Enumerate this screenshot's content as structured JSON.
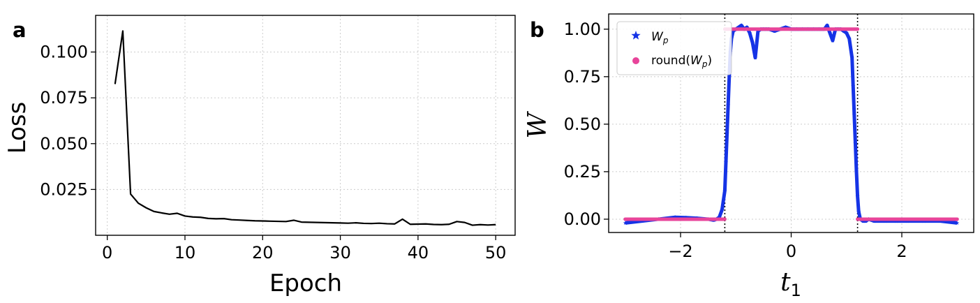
{
  "chart_data": [
    {
      "type": "line",
      "panel_label": "a",
      "xlabel": "Epoch",
      "ylabel": "Loss",
      "xlim": [
        -1.5,
        52.5
      ],
      "ylim": [
        0.0,
        0.12
      ],
      "xticks": [
        0,
        10,
        20,
        30,
        40,
        50
      ],
      "yticks": [
        0.025,
        0.05,
        0.075,
        0.1
      ],
      "ytick_labels": [
        "0.025",
        "0.050",
        "0.075",
        "0.100"
      ],
      "grid": true,
      "colors": {
        "line": "#000000",
        "grid": "#cccccc"
      },
      "series": [
        {
          "x": [
            1,
            2,
            3,
            4,
            5,
            6,
            7,
            8,
            9,
            10,
            11,
            12,
            13,
            14,
            15,
            16,
            17,
            18,
            19,
            20,
            21,
            22,
            23,
            24,
            25,
            26,
            27,
            28,
            29,
            30,
            31,
            32,
            33,
            34,
            35,
            36,
            37,
            38,
            39,
            40,
            41,
            42,
            43,
            44,
            45,
            46,
            47,
            48,
            49,
            50
          ],
          "values": [
            0.0825,
            0.1115,
            0.0225,
            0.0175,
            0.015,
            0.013,
            0.0122,
            0.0115,
            0.012,
            0.0105,
            0.01,
            0.0098,
            0.0092,
            0.009,
            0.0091,
            0.0085,
            0.0083,
            0.0081,
            0.0079,
            0.0078,
            0.0077,
            0.0076,
            0.0075,
            0.0082,
            0.0072,
            0.0071,
            0.007,
            0.0069,
            0.0068,
            0.0067,
            0.0066,
            0.0068,
            0.0065,
            0.0064,
            0.0066,
            0.0063,
            0.0062,
            0.0088,
            0.006,
            0.0061,
            0.0062,
            0.0059,
            0.0058,
            0.006,
            0.0075,
            0.007,
            0.0055,
            0.0058,
            0.0056,
            0.0058
          ]
        }
      ]
    },
    {
      "type": "scatter",
      "panel_label": "b",
      "xlabel": "t",
      "xlabel_sub": "1",
      "ylabel": "W",
      "xlim": [
        -3.3,
        3.3
      ],
      "ylim": [
        -0.07,
        1.08
      ],
      "xticks": [
        -2,
        0,
        2
      ],
      "xtick_labels": [
        "−2",
        "0",
        "2"
      ],
      "yticks": [
        0.0,
        0.25,
        0.5,
        0.75,
        1.0
      ],
      "ytick_labels": [
        "0.00",
        "0.25",
        "0.50",
        "0.75",
        "1.00"
      ],
      "grid": true,
      "vlines": [
        -1.2,
        1.2
      ],
      "legend_position": "top-left",
      "colors": {
        "wp": "#1533e6",
        "round": "#e8449a",
        "vline": "#000000",
        "grid": "#cccccc"
      },
      "series": [
        {
          "name": "W_p",
          "legend_main": "W",
          "legend_sub": "p",
          "marker": "star",
          "x": [
            -3.0,
            -2.7,
            -2.4,
            -2.1,
            -1.9,
            -1.7,
            -1.5,
            -1.4,
            -1.35,
            -1.3,
            -1.25,
            -1.2,
            -1.18,
            -1.16,
            -1.14,
            -1.12,
            -1.1,
            -1.08,
            -1.05,
            -1.0,
            -0.95,
            -0.9,
            -0.85,
            -0.8,
            -0.75,
            -0.7,
            -0.65,
            -0.6,
            -0.55,
            -0.5,
            -0.45,
            -0.4,
            -0.3,
            -0.2,
            -0.1,
            0.0,
            0.1,
            0.2,
            0.3,
            0.4,
            0.5,
            0.6,
            0.65,
            0.7,
            0.75,
            0.8,
            0.85,
            0.9,
            0.95,
            1.0,
            1.05,
            1.1,
            1.12,
            1.14,
            1.16,
            1.18,
            1.2,
            1.22,
            1.25,
            1.3,
            1.35,
            1.4,
            1.5,
            1.7,
            1.9,
            2.1,
            2.4,
            2.7,
            3.0
          ],
          "values": [
            -0.02,
            -0.01,
            0.0,
            0.01,
            0.008,
            0.005,
            0.0,
            -0.005,
            0.0,
            0.01,
            0.05,
            0.15,
            0.3,
            0.45,
            0.6,
            0.75,
            0.88,
            0.95,
            0.99,
            1.0,
            1.01,
            1.02,
            1.0,
            1.01,
            0.98,
            0.93,
            0.85,
            0.99,
            1.0,
            1.0,
            1.0,
            1.0,
            0.99,
            1.0,
            1.01,
            1.0,
            1.0,
            1.0,
            1.0,
            1.0,
            1.0,
            1.0,
            1.02,
            0.98,
            0.94,
            1.0,
            1.0,
            1.0,
            0.99,
            0.98,
            0.95,
            0.85,
            0.7,
            0.55,
            0.4,
            0.25,
            0.12,
            0.04,
            0.0,
            -0.01,
            -0.01,
            0.0,
            -0.01,
            -0.01,
            -0.01,
            -0.01,
            -0.01,
            -0.01,
            -0.02
          ]
        },
        {
          "name": "round(W_p)",
          "legend_main": "round(",
          "legend_var": "W",
          "legend_sub": "p",
          "legend_close": ")",
          "marker": "circle",
          "segments": [
            {
              "x": [
                -3.0,
                -1.2
              ],
              "value": 0
            },
            {
              "x": [
                -1.2,
                1.2
              ],
              "value": 1
            },
            {
              "x": [
                1.2,
                3.0
              ],
              "value": 0
            }
          ]
        }
      ]
    }
  ]
}
